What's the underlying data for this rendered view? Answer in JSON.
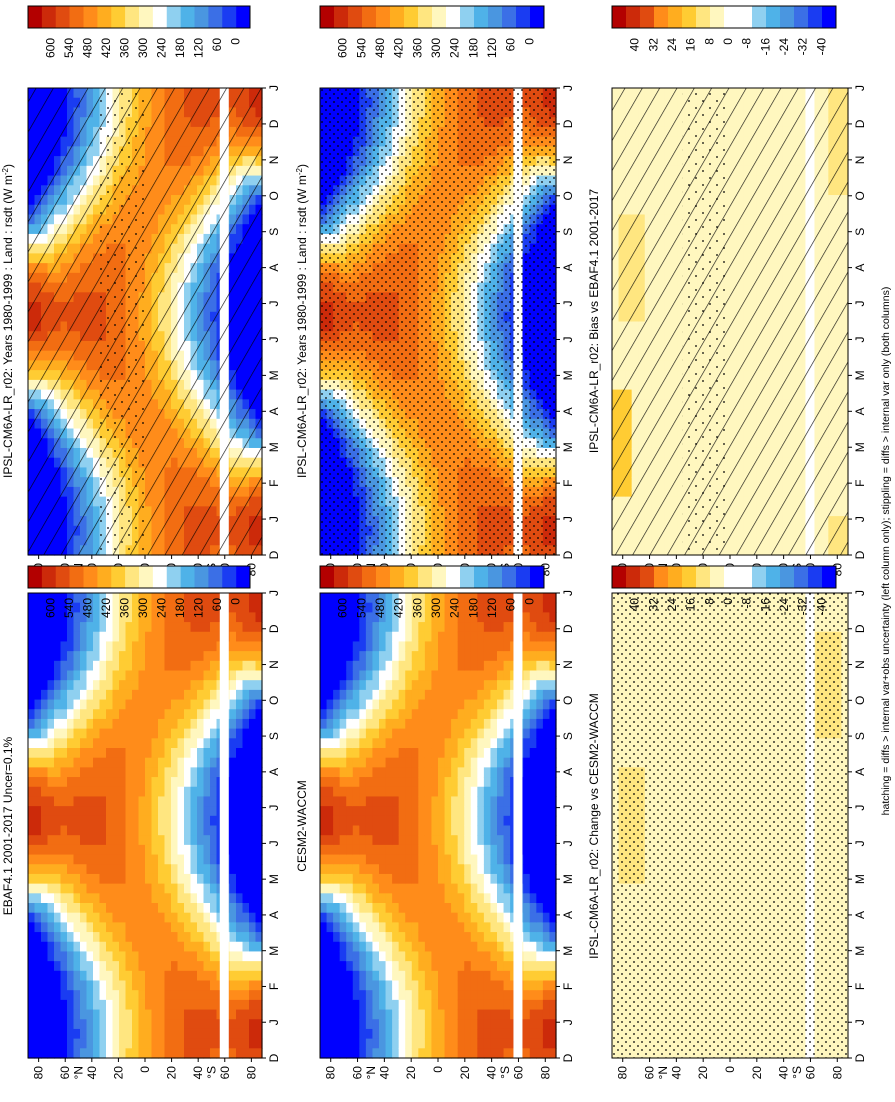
{
  "footnote": "hatching = diffs > internal var+obs uncertainty (left column only); stippling = diffs > internal var only (both columns)",
  "colors": {
    "abs": [
      "#0000ff",
      "#1a3cf2",
      "#3b6fe6",
      "#4a96e0",
      "#4fb2e8",
      "#8fd0f0",
      "#ffffff",
      "#fff7bf",
      "#ffe680",
      "#ffcc33",
      "#ffad1f",
      "#ff8c1a",
      "#f26d12",
      "#e04b10",
      "#cc2a0a",
      "#b30000"
    ],
    "diff": [
      "#0000ff",
      "#1a3cf2",
      "#3b6fe6",
      "#4a96e0",
      "#4fb2e8",
      "#8fd0f0",
      "#ffffff",
      "#ffffff",
      "#fff7bf",
      "#ffe680",
      "#ffcc33",
      "#ffad1f",
      "#ff8c1a",
      "#e04b10",
      "#cc2a0a",
      "#b30000"
    ]
  },
  "month_labels": [
    "D",
    "J",
    "F",
    "M",
    "A",
    "M",
    "J",
    "J",
    "A",
    "S",
    "O",
    "N",
    "D",
    "J"
  ],
  "chart_data": [
    {
      "id": "left-top",
      "type": "heatmap",
      "title": "IPSL-CM6A-LR_r02: Years 1980-1999 : Land : rsdt (W m",
      "title_sup": "-2",
      "title_end": ")",
      "lat_ticks": [
        "80",
        "60",
        "40",
        "20",
        "0",
        "20",
        "40",
        "60",
        "80"
      ],
      "lat_hem_labels": [
        "°N",
        "°S"
      ],
      "colorbar_labels": [
        "600",
        "540",
        "480",
        "420",
        "360",
        "300",
        "240",
        "180",
        "120",
        "60",
        "0"
      ],
      "colorbar_kind": "abs",
      "field": "rsdt",
      "hatching": true,
      "stippling": "sparse"
    },
    {
      "id": "right-top",
      "type": "heatmap",
      "title": "IPSL-CM6A-LR_r02: Years 1980-1999 : Land : rsdt (W m",
      "title_sup": "-2",
      "title_end": ")",
      "lat_ticks": [
        "80",
        "60",
        "40",
        "20",
        "0",
        "20",
        "40",
        "60",
        "80"
      ],
      "lat_hem_labels": [
        "°N",
        "°S"
      ],
      "colorbar_labels": [
        "600",
        "540",
        "480",
        "420",
        "360",
        "300",
        "240",
        "180",
        "120",
        "60",
        "0"
      ],
      "colorbar_kind": "abs",
      "field": "rsdt",
      "hatching": false,
      "stippling": "dense"
    },
    {
      "id": "left-middle",
      "type": "heatmap",
      "title": "EBAF4.1 2001-2017 Uncer=0.1%",
      "title_sup": "",
      "title_end": "",
      "lat_ticks": [
        "80",
        "60",
        "40",
        "20",
        "0",
        "20",
        "40",
        "60",
        "80"
      ],
      "lat_hem_labels": [
        "°N",
        "°S"
      ],
      "colorbar_labels": [
        "600",
        "540",
        "480",
        "420",
        "360",
        "300",
        "240",
        "180",
        "120",
        "60",
        "0"
      ],
      "colorbar_kind": "abs",
      "field": "rsdt",
      "hatching": false,
      "stippling": "none"
    },
    {
      "id": "right-middle",
      "type": "heatmap",
      "title": "CESM2-WACCM",
      "title_sup": "",
      "title_end": "",
      "lat_ticks": [
        "80",
        "60",
        "40",
        "20",
        "0",
        "20",
        "40",
        "60",
        "80"
      ],
      "lat_hem_labels": [
        "°N",
        "°S"
      ],
      "colorbar_labels": [
        "600",
        "540",
        "480",
        "420",
        "360",
        "300",
        "240",
        "180",
        "120",
        "60",
        "0"
      ],
      "colorbar_kind": "abs",
      "field": "rsdt",
      "hatching": false,
      "stippling": "none"
    },
    {
      "id": "left-bottom",
      "type": "heatmap",
      "title": "IPSL-CM6A-LR_r02: Bias vs EBAF4.1 2001-2017",
      "title_sup": "",
      "title_end": "",
      "lat_ticks": [
        "80",
        "60",
        "40",
        "20",
        "0",
        "20",
        "40",
        "60",
        "80"
      ],
      "lat_hem_labels": [
        "°N",
        "°S"
      ],
      "colorbar_labels": [
        "40",
        "32",
        "24",
        "16",
        "8",
        "0",
        "-8",
        "-16",
        "-24",
        "-32",
        "-40"
      ],
      "colorbar_kind": "diff",
      "field": "bias",
      "hatching": true,
      "stippling": "sparse"
    },
    {
      "id": "right-bottom",
      "type": "heatmap",
      "title": "IPSL-CM6A-LR_r02: Change vs CESM2-WACCM",
      "title_sup": "",
      "title_end": "",
      "lat_ticks": [
        "80",
        "60",
        "40",
        "20",
        "0",
        "20",
        "40",
        "60",
        "80"
      ],
      "lat_hem_labels": [
        "°N",
        "°S"
      ],
      "colorbar_labels": [
        "40",
        "32",
        "24",
        "16",
        "8",
        "0",
        "-8",
        "-16",
        "-24",
        "-32",
        "-40"
      ],
      "colorbar_kind": "diff",
      "field": "change",
      "hatching": false,
      "stippling": "dense"
    }
  ]
}
